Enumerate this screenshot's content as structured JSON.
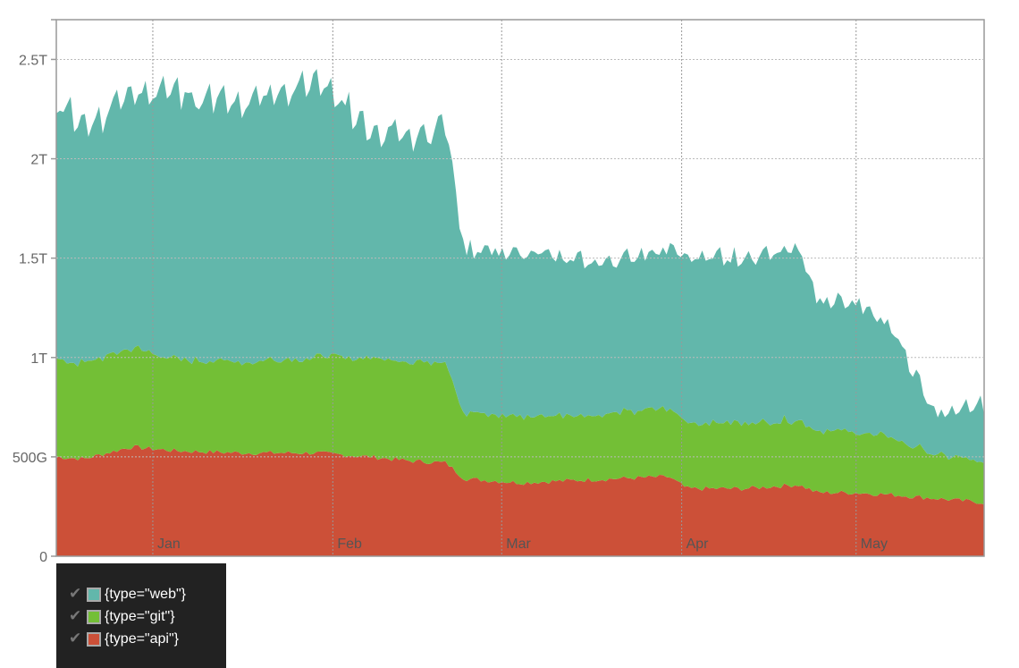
{
  "chart_data": {
    "type": "area",
    "stacked": true,
    "x_axis": {
      "type": "date",
      "tick_labels": [
        "Jan",
        "Feb",
        "Mar",
        "Apr",
        "May"
      ]
    },
    "y_axis": {
      "tick_labels": [
        "0",
        "500G",
        "1T",
        "1.5T",
        "2T",
        "2.5T"
      ],
      "ylim": [
        0,
        2.7
      ]
    },
    "grid": true,
    "legend_placement": "bottom-left",
    "series": [
      {
        "name": "{type=\"api\"}",
        "color": "#cc5038",
        "knots": [
          [
            0,
            0.5
          ],
          [
            0.03,
            0.49
          ],
          [
            0.08,
            0.55
          ],
          [
            0.13,
            0.53
          ],
          [
            0.2,
            0.52
          ],
          [
            0.28,
            0.52
          ],
          [
            0.34,
            0.5
          ],
          [
            0.38,
            0.48
          ],
          [
            0.42,
            0.47
          ],
          [
            0.44,
            0.39
          ],
          [
            0.5,
            0.37
          ],
          [
            0.55,
            0.38
          ],
          [
            0.6,
            0.39
          ],
          [
            0.66,
            0.4
          ],
          [
            0.68,
            0.34
          ],
          [
            0.74,
            0.34
          ],
          [
            0.8,
            0.36
          ],
          [
            0.82,
            0.32
          ],
          [
            0.86,
            0.32
          ],
          [
            0.9,
            0.31
          ],
          [
            0.95,
            0.29
          ],
          [
            1.0,
            0.27
          ]
        ]
      },
      {
        "name": "{type=\"git\"}",
        "color": "#73bf36",
        "knots": [
          [
            0,
            0.49
          ],
          [
            0.03,
            0.48
          ],
          [
            0.08,
            0.5
          ],
          [
            0.13,
            0.46
          ],
          [
            0.2,
            0.46
          ],
          [
            0.28,
            0.48
          ],
          [
            0.34,
            0.5
          ],
          [
            0.38,
            0.5
          ],
          [
            0.42,
            0.51
          ],
          [
            0.44,
            0.33
          ],
          [
            0.5,
            0.34
          ],
          [
            0.55,
            0.33
          ],
          [
            0.6,
            0.33
          ],
          [
            0.66,
            0.34
          ],
          [
            0.68,
            0.33
          ],
          [
            0.74,
            0.33
          ],
          [
            0.8,
            0.33
          ],
          [
            0.82,
            0.31
          ],
          [
            0.86,
            0.31
          ],
          [
            0.9,
            0.29
          ],
          [
            0.95,
            0.22
          ],
          [
            1.0,
            0.2
          ]
        ]
      },
      {
        "name": "{type=\"web\"}",
        "color": "#62b7ab",
        "knots": [
          [
            0,
            1.3
          ],
          [
            0.03,
            1.2
          ],
          [
            0.08,
            1.3
          ],
          [
            0.13,
            1.35
          ],
          [
            0.2,
            1.3
          ],
          [
            0.28,
            1.4
          ],
          [
            0.34,
            1.15
          ],
          [
            0.38,
            1.15
          ],
          [
            0.42,
            1.2
          ],
          [
            0.44,
            0.83
          ],
          [
            0.5,
            0.82
          ],
          [
            0.55,
            0.8
          ],
          [
            0.6,
            0.76
          ],
          [
            0.66,
            0.8
          ],
          [
            0.68,
            0.84
          ],
          [
            0.74,
            0.83
          ],
          [
            0.8,
            0.88
          ],
          [
            0.82,
            0.67
          ],
          [
            0.86,
            0.65
          ],
          [
            0.9,
            0.55
          ],
          [
            0.95,
            0.2
          ],
          [
            1.0,
            0.3
          ]
        ]
      }
    ]
  },
  "legend": {
    "items": [
      {
        "label": "{type=\"web\"}",
        "color": "#62b7ab"
      },
      {
        "label": "{type=\"git\"}",
        "color": "#73bf36"
      },
      {
        "label": "{type=\"api\"}",
        "color": "#cc5038"
      }
    ],
    "check": "✔"
  }
}
